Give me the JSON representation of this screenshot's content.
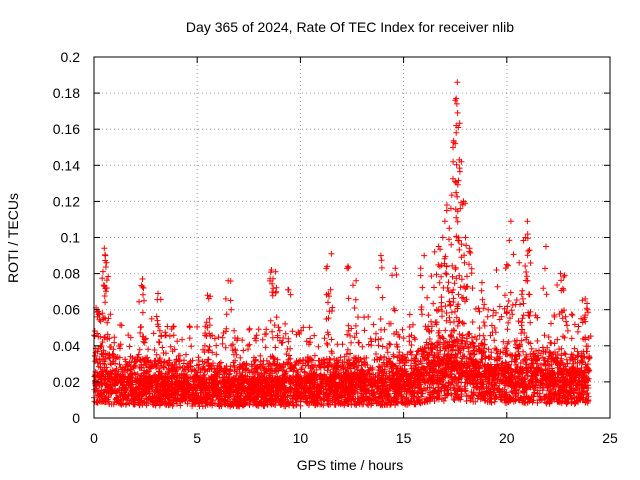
{
  "chart_data": {
    "type": "scatter",
    "title": "Day 365 of 2024, Rate Of TEC Index for receiver nlib",
    "xlabel": "GPS time / hours",
    "ylabel": "ROTI / TECUs",
    "xlim": [
      0,
      25
    ],
    "ylim": [
      0,
      0.2
    ],
    "x_ticks": [
      0,
      5,
      10,
      15,
      20,
      25
    ],
    "x_tick_labels": [
      "0",
      "5",
      "10",
      "15",
      "20",
      "25"
    ],
    "y_ticks": [
      0,
      0.02,
      0.04,
      0.06,
      0.08,
      0.1,
      0.12,
      0.14,
      0.16,
      0.18,
      0.2
    ],
    "y_tick_labels": [
      "0",
      "0.02",
      "0.04",
      "0.06",
      "0.08",
      "0.1",
      "0.12",
      "0.14",
      "0.16",
      "0.18",
      "0.2"
    ],
    "grid": true,
    "legend": "none",
    "marker": "plus",
    "series": [
      {
        "name": "ROTI",
        "color": "#ff0000",
        "x_range": [
          0,
          24
        ],
        "baseline_envelope": [
          [
            0,
            0.022
          ],
          [
            2,
            0.02
          ],
          [
            4,
            0.019
          ],
          [
            6,
            0.018
          ],
          [
            8,
            0.018
          ],
          [
            10,
            0.019
          ],
          [
            12,
            0.02
          ],
          [
            14,
            0.02
          ],
          [
            15.5,
            0.021
          ],
          [
            16.5,
            0.026
          ],
          [
            17.5,
            0.028
          ],
          [
            19,
            0.024
          ],
          [
            20.5,
            0.023
          ],
          [
            22,
            0.022
          ],
          [
            24,
            0.021
          ]
        ],
        "peaks": [
          [
            0.1,
            0.061
          ],
          [
            0.2,
            0.059
          ],
          [
            0.4,
            0.058
          ],
          [
            0.5,
            0.094
          ],
          [
            0.55,
            0.09
          ],
          [
            0.6,
            0.086
          ],
          [
            2.35,
            0.077
          ],
          [
            2.4,
            0.072
          ],
          [
            3.1,
            0.069
          ],
          [
            5.5,
            0.068
          ],
          [
            5.6,
            0.055
          ],
          [
            6.5,
            0.076
          ],
          [
            8.6,
            0.082
          ],
          [
            8.8,
            0.081
          ],
          [
            9.4,
            0.071
          ],
          [
            11.3,
            0.084
          ],
          [
            11.5,
            0.091
          ],
          [
            12.3,
            0.084
          ],
          [
            12.7,
            0.076
          ],
          [
            13.9,
            0.09
          ],
          [
            14.6,
            0.083
          ],
          [
            16.0,
            0.09
          ],
          [
            16.2,
            0.057
          ],
          [
            16.5,
            0.092
          ],
          [
            16.7,
            0.095
          ],
          [
            16.9,
            0.1
          ],
          [
            17.0,
            0.109
          ],
          [
            17.1,
            0.118
          ],
          [
            17.2,
            0.099
          ],
          [
            17.4,
            0.142
          ],
          [
            17.5,
            0.152
          ],
          [
            17.55,
            0.162
          ],
          [
            17.5,
            0.176
          ],
          [
            17.55,
            0.177
          ],
          [
            17.6,
            0.186
          ],
          [
            17.7,
            0.143
          ],
          [
            17.8,
            0.142
          ],
          [
            17.9,
            0.12
          ],
          [
            18.0,
            0.1
          ],
          [
            18.2,
            0.094
          ],
          [
            18.8,
            0.075
          ],
          [
            19.5,
            0.082
          ],
          [
            20.0,
            0.085
          ],
          [
            20.2,
            0.109
          ],
          [
            20.6,
            0.086
          ],
          [
            20.9,
            0.1
          ],
          [
            21.0,
            0.109
          ],
          [
            21.1,
            0.093
          ],
          [
            21.9,
            0.095
          ],
          [
            22.6,
            0.08
          ],
          [
            22.8,
            0.079
          ],
          [
            23.6,
            0.055
          ],
          [
            23.8,
            0.066
          ],
          [
            23.9,
            0.06
          ]
        ]
      }
    ]
  }
}
